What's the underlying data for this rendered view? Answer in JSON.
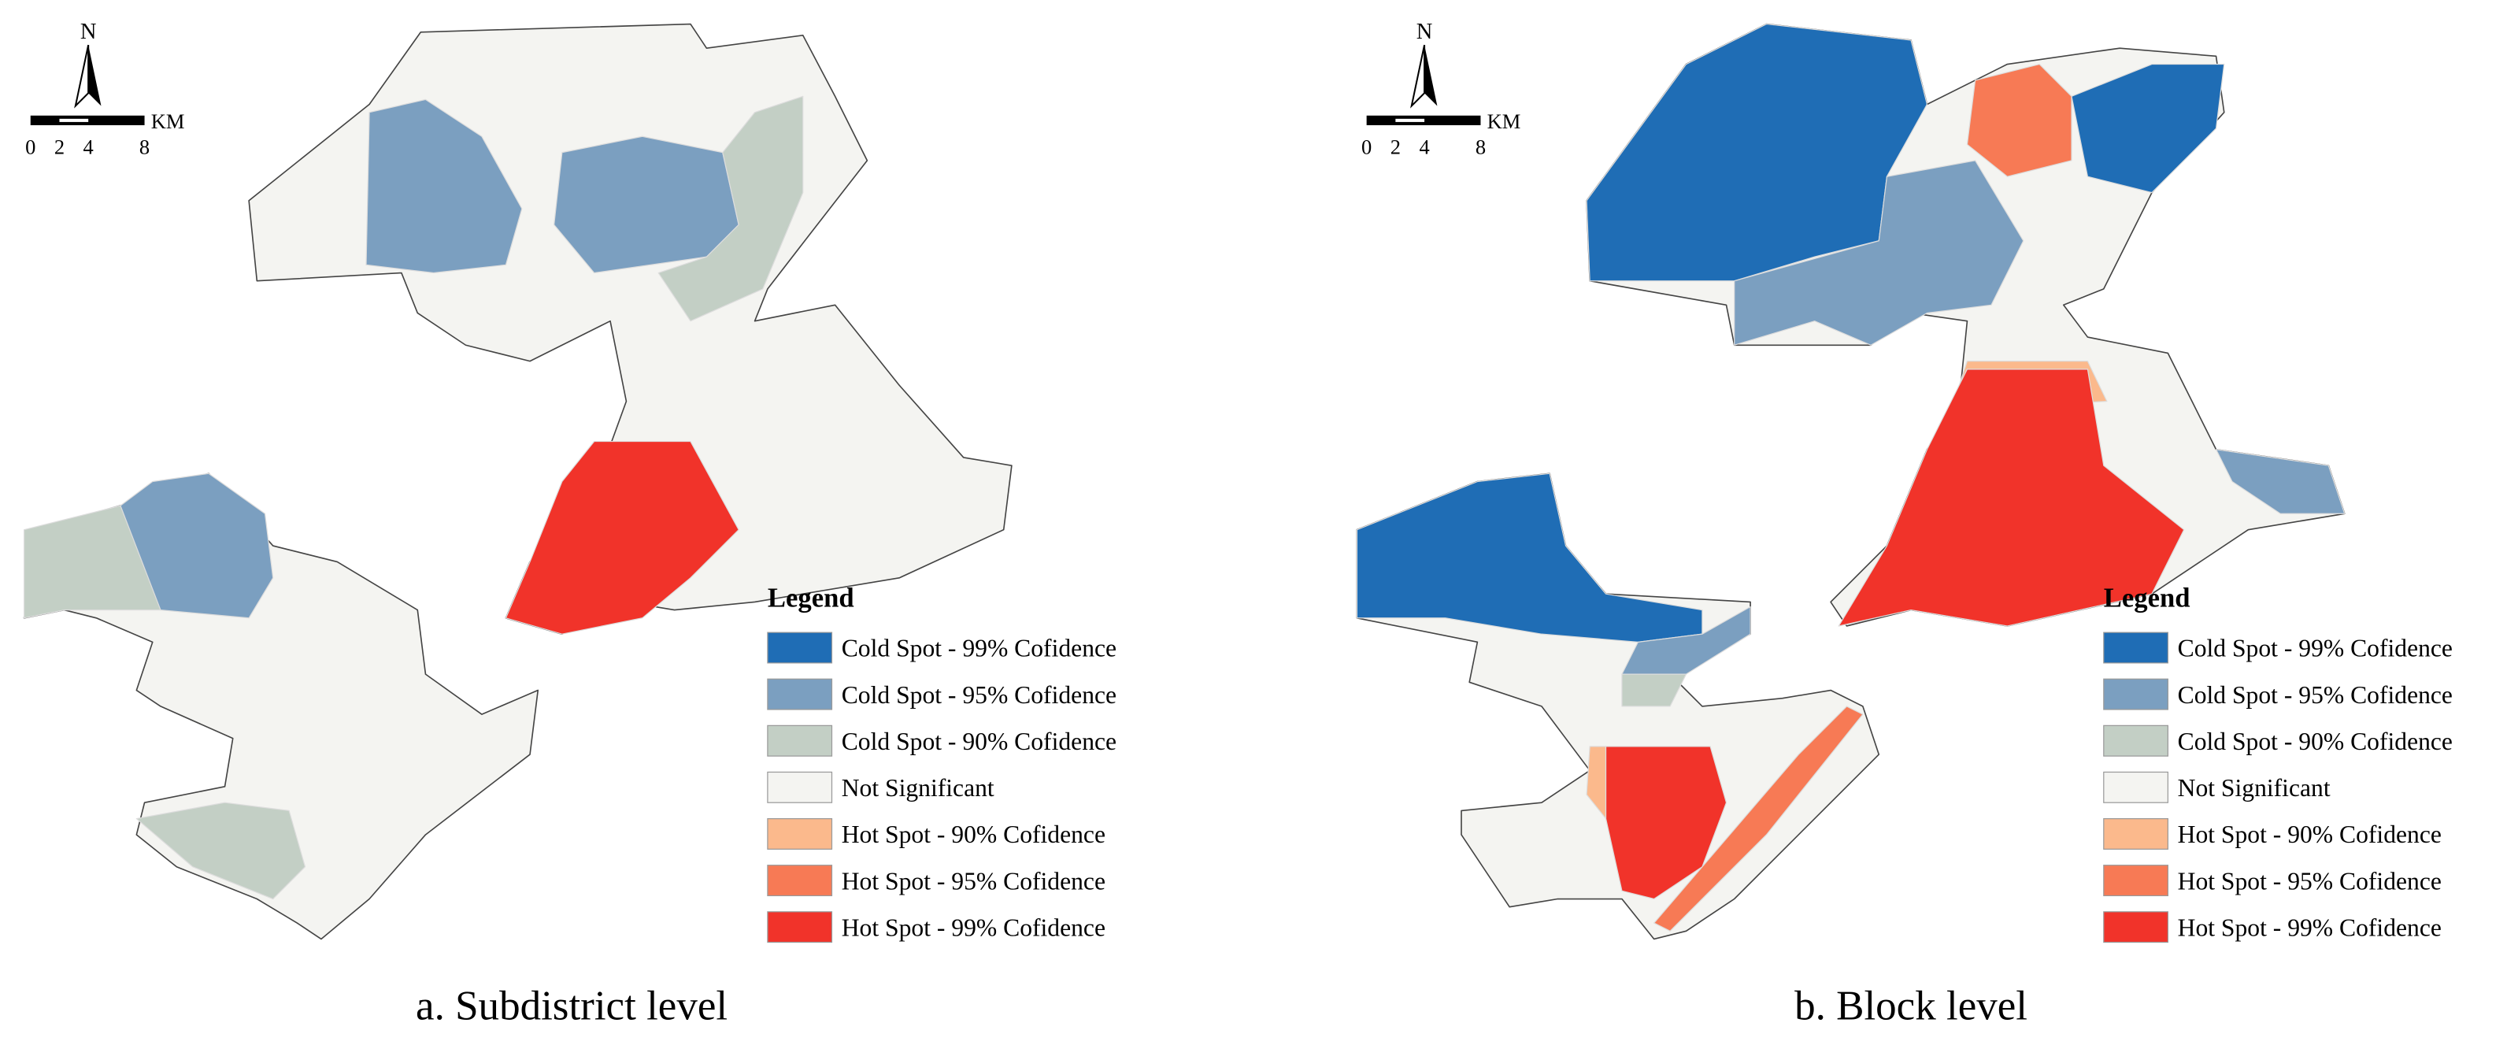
{
  "panels": [
    {
      "north": "N",
      "scale": {
        "ticks": [
          "0",
          "2",
          "4",
          "8"
        ],
        "unit": "KM"
      },
      "legend": {
        "title": "Legend",
        "items": [
          {
            "label": "Cold Spot - 99% Cofidence",
            "color": "#1f6db5"
          },
          {
            "label": "Cold Spot - 95% Cofidence",
            "color": "#7b9fc0"
          },
          {
            "label": "Cold Spot - 90% Cofidence",
            "color": "#c3cfc5"
          },
          {
            "label": "Not Significant",
            "color": "#f4f4f1"
          },
          {
            "label": "Hot Spot - 90% Cofidence",
            "color": "#fbb98c"
          },
          {
            "label": "Hot Spot - 95% Cofidence",
            "color": "#f77a55"
          },
          {
            "label": "Hot Spot - 99% Cofidence",
            "color": "#f1332a"
          }
        ]
      },
      "caption": "a. Subdistrict level"
    },
    {
      "north": "N",
      "scale": {
        "ticks": [
          "0",
          "2",
          "4",
          "8"
        ],
        "unit": "KM"
      },
      "legend": {
        "title": "Legend",
        "items": [
          {
            "label": "Cold Spot - 99% Cofidence",
            "color": "#1f6db5"
          },
          {
            "label": "Cold Spot - 95% Cofidence",
            "color": "#7b9fc0"
          },
          {
            "label": "Cold Spot - 90% Cofidence",
            "color": "#c3cfc5"
          },
          {
            "label": "Not Significant",
            "color": "#f4f4f1"
          },
          {
            "label": "Hot Spot - 90% Cofidence",
            "color": "#fbb98c"
          },
          {
            "label": "Hot Spot - 95% Cofidence",
            "color": "#f77a55"
          },
          {
            "label": "Hot Spot - 99% Cofidence",
            "color": "#f1332a"
          }
        ]
      },
      "caption": "b. Block level"
    }
  ]
}
